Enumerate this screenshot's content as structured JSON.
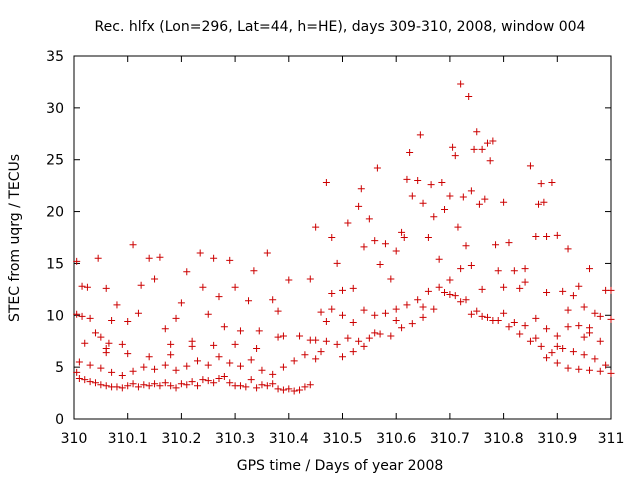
{
  "chart_data": {
    "type": "scatter",
    "title": "Rec. hlfx (Lon=296, Lat=44, h=HE), days 309-310, 2008, window 004",
    "xlabel": "GPS time / Days of year 2008",
    "ylabel": "STEC from uqrg / TECUs",
    "xlim": [
      310,
      311
    ],
    "ylim": [
      0,
      35
    ],
    "xticks": [
      310,
      310.1,
      310.2,
      310.3,
      310.4,
      310.5,
      310.6,
      310.7,
      310.8,
      310.9,
      311
    ],
    "xtick_labels": [
      "310",
      "310.1",
      "310.2",
      "310.3",
      "310.4",
      "310.5",
      "310.6",
      "310.7",
      "310.8",
      "310.9",
      "311"
    ],
    "yticks": [
      0,
      5,
      10,
      15,
      20,
      25,
      30,
      35
    ],
    "ytick_labels": [
      "0",
      "5",
      "10",
      "15",
      "20",
      "25",
      "30",
      "35"
    ],
    "grid": false,
    "marker": "plus",
    "color": "#cc0000",
    "series": [
      {
        "points": [
          [
            310.005,
            15.2
          ],
          [
            310.015,
            12.8
          ],
          [
            310.025,
            12.7
          ],
          [
            310.045,
            15.5
          ],
          [
            310.06,
            12.6
          ],
          [
            310.005,
            10.1
          ],
          [
            310.015,
            9.9
          ],
          [
            310.03,
            9.7
          ],
          [
            310.04,
            8.3
          ],
          [
            310.05,
            7.9
          ],
          [
            310.06,
            6.8
          ],
          [
            310.065,
            7.3
          ],
          [
            310.07,
            9.5
          ],
          [
            310.08,
            11.0
          ],
          [
            310.09,
            7.2
          ],
          [
            310.1,
            9.4
          ],
          [
            310.11,
            16.8
          ],
          [
            310.12,
            10.2
          ],
          [
            310.125,
            12.9
          ],
          [
            310.14,
            15.5
          ],
          [
            310.15,
            13.5
          ],
          [
            310.16,
            15.6
          ],
          [
            310.17,
            8.7
          ],
          [
            310.18,
            7.2
          ],
          [
            310.19,
            9.7
          ],
          [
            310.2,
            11.2
          ],
          [
            310.21,
            14.2
          ],
          [
            310.22,
            7.5
          ],
          [
            310.235,
            16.0
          ],
          [
            310.24,
            12.7
          ],
          [
            310.25,
            10.1
          ],
          [
            310.26,
            15.5
          ],
          [
            310.27,
            11.8
          ],
          [
            310.28,
            8.9
          ],
          [
            310.29,
            15.3
          ],
          [
            310.3,
            12.7
          ],
          [
            310.31,
            8.5
          ],
          [
            310.325,
            11.4
          ],
          [
            310.335,
            14.3
          ],
          [
            310.345,
            8.5
          ],
          [
            310.36,
            16.0
          ],
          [
            310.37,
            11.5
          ],
          [
            310.38,
            10.4
          ],
          [
            310.39,
            8.0
          ],
          [
            310.4,
            13.4
          ],
          [
            310.005,
            4.5
          ],
          [
            310.01,
            3.9
          ],
          [
            310.02,
            3.8
          ],
          [
            310.03,
            3.6
          ],
          [
            310.04,
            3.5
          ],
          [
            310.05,
            3.3
          ],
          [
            310.06,
            3.2
          ],
          [
            310.07,
            3.1
          ],
          [
            310.08,
            3.1
          ],
          [
            310.09,
            3.0
          ],
          [
            310.1,
            3.2
          ],
          [
            310.11,
            3.4
          ],
          [
            310.12,
            3.1
          ],
          [
            310.13,
            3.3
          ],
          [
            310.14,
            3.2
          ],
          [
            310.15,
            3.4
          ],
          [
            310.16,
            3.2
          ],
          [
            310.17,
            3.5
          ],
          [
            310.18,
            3.2
          ],
          [
            310.19,
            3.0
          ],
          [
            310.2,
            3.4
          ],
          [
            310.21,
            3.3
          ],
          [
            310.22,
            3.6
          ],
          [
            310.23,
            3.2
          ],
          [
            310.24,
            3.8
          ],
          [
            310.25,
            3.7
          ],
          [
            310.26,
            3.5
          ],
          [
            310.27,
            3.9
          ],
          [
            310.28,
            4.1
          ],
          [
            310.29,
            3.5
          ],
          [
            310.3,
            3.2
          ],
          [
            310.31,
            3.2
          ],
          [
            310.32,
            3.1
          ],
          [
            310.33,
            3.8
          ],
          [
            310.34,
            3.0
          ],
          [
            310.35,
            3.3
          ],
          [
            310.36,
            3.2
          ],
          [
            310.37,
            3.4
          ],
          [
            310.38,
            2.9
          ],
          [
            310.39,
            2.8
          ],
          [
            310.4,
            2.9
          ],
          [
            310.41,
            2.7
          ],
          [
            310.42,
            2.8
          ],
          [
            310.43,
            3.1
          ],
          [
            310.44,
            3.3
          ],
          [
            310.01,
            5.5
          ],
          [
            310.03,
            5.2
          ],
          [
            310.05,
            4.9
          ],
          [
            310.07,
            4.5
          ],
          [
            310.09,
            4.2
          ],
          [
            310.11,
            4.6
          ],
          [
            310.13,
            5.0
          ],
          [
            310.15,
            4.8
          ],
          [
            310.17,
            5.2
          ],
          [
            310.19,
            4.7
          ],
          [
            310.21,
            5.1
          ],
          [
            310.23,
            5.6
          ],
          [
            310.25,
            5.2
          ],
          [
            310.27,
            6.0
          ],
          [
            310.29,
            5.4
          ],
          [
            310.31,
            5.1
          ],
          [
            310.33,
            5.7
          ],
          [
            310.35,
            4.7
          ],
          [
            310.37,
            4.3
          ],
          [
            310.39,
            5.0
          ],
          [
            310.41,
            5.6
          ],
          [
            310.43,
            6.2
          ],
          [
            310.45,
            5.8
          ],
          [
            310.02,
            7.3
          ],
          [
            310.06,
            6.4
          ],
          [
            310.1,
            6.3
          ],
          [
            310.14,
            6.0
          ],
          [
            310.18,
            6.2
          ],
          [
            310.22,
            7.0
          ],
          [
            310.26,
            7.1
          ],
          [
            310.3,
            7.2
          ],
          [
            310.34,
            6.8
          ],
          [
            310.38,
            7.9
          ],
          [
            310.42,
            8.0
          ],
          [
            310.44,
            7.6
          ],
          [
            310.46,
            6.5
          ],
          [
            310.47,
            9.4
          ],
          [
            310.48,
            12.1
          ],
          [
            310.44,
            13.5
          ],
          [
            310.45,
            18.5
          ],
          [
            310.47,
            22.8
          ],
          [
            310.48,
            17.5
          ],
          [
            310.49,
            15.0
          ],
          [
            310.5,
            12.4
          ],
          [
            310.51,
            18.9
          ],
          [
            310.52,
            12.6
          ],
          [
            310.53,
            20.5
          ],
          [
            310.535,
            22.2
          ],
          [
            310.54,
            16.6
          ],
          [
            310.55,
            19.3
          ],
          [
            310.56,
            17.2
          ],
          [
            310.565,
            24.2
          ],
          [
            310.57,
            14.9
          ],
          [
            310.58,
            16.9
          ],
          [
            310.59,
            13.5
          ],
          [
            310.6,
            16.2
          ],
          [
            310.61,
            18.0
          ],
          [
            310.615,
            17.5
          ],
          [
            310.62,
            23.1
          ],
          [
            310.625,
            25.7
          ],
          [
            310.63,
            21.5
          ],
          [
            310.64,
            23.0
          ],
          [
            310.645,
            27.4
          ],
          [
            310.65,
            20.8
          ],
          [
            310.66,
            17.5
          ],
          [
            310.665,
            22.6
          ],
          [
            310.67,
            19.5
          ],
          [
            310.68,
            15.4
          ],
          [
            310.685,
            22.8
          ],
          [
            310.69,
            20.2
          ],
          [
            310.7,
            21.5
          ],
          [
            310.705,
            26.2
          ],
          [
            310.71,
            25.4
          ],
          [
            310.715,
            18.5
          ],
          [
            310.72,
            32.3
          ],
          [
            310.725,
            21.4
          ],
          [
            310.73,
            16.7
          ],
          [
            310.735,
            31.1
          ],
          [
            310.74,
            22.0
          ],
          [
            310.745,
            26.0
          ],
          [
            310.75,
            27.7
          ],
          [
            310.755,
            20.7
          ],
          [
            310.76,
            26.0
          ],
          [
            310.765,
            21.2
          ],
          [
            310.77,
            26.6
          ],
          [
            310.775,
            24.9
          ],
          [
            310.78,
            26.8
          ],
          [
            310.785,
            16.8
          ],
          [
            310.79,
            14.3
          ],
          [
            310.8,
            20.9
          ],
          [
            310.81,
            17.0
          ],
          [
            310.82,
            14.3
          ],
          [
            310.83,
            12.6
          ],
          [
            310.84,
            14.5
          ],
          [
            310.85,
            24.4
          ],
          [
            310.86,
            17.6
          ],
          [
            310.865,
            20.7
          ],
          [
            310.87,
            22.7
          ],
          [
            310.875,
            20.9
          ],
          [
            310.88,
            17.6
          ],
          [
            310.89,
            22.8
          ],
          [
            310.9,
            17.7
          ],
          [
            310.91,
            12.3
          ],
          [
            310.92,
            16.4
          ],
          [
            310.93,
            11.9
          ],
          [
            310.94,
            12.8
          ],
          [
            310.95,
            10.8
          ],
          [
            310.96,
            14.5
          ],
          [
            310.97,
            10.2
          ],
          [
            310.98,
            9.9
          ],
          [
            310.99,
            12.4
          ],
          [
            311.0,
            12.4
          ],
          [
            310.46,
            10.3
          ],
          [
            310.48,
            10.6
          ],
          [
            310.5,
            10.0
          ],
          [
            310.52,
            9.3
          ],
          [
            310.54,
            10.5
          ],
          [
            310.56,
            10.0
          ],
          [
            310.58,
            10.2
          ],
          [
            310.6,
            10.6
          ],
          [
            310.62,
            11.0
          ],
          [
            310.64,
            11.5
          ],
          [
            310.66,
            12.3
          ],
          [
            310.68,
            12.7
          ],
          [
            310.7,
            12.0
          ],
          [
            310.72,
            11.3
          ],
          [
            310.74,
            10.1
          ],
          [
            310.76,
            9.9
          ],
          [
            310.78,
            9.5
          ],
          [
            310.8,
            10.2
          ],
          [
            310.82,
            9.3
          ],
          [
            310.84,
            9.0
          ],
          [
            310.86,
            9.7
          ],
          [
            310.88,
            8.7
          ],
          [
            310.9,
            8.0
          ],
          [
            310.92,
            8.9
          ],
          [
            310.94,
            9.0
          ],
          [
            310.96,
            8.8
          ],
          [
            310.98,
            7.5
          ],
          [
            311.0,
            9.6
          ],
          [
            310.45,
            7.6
          ],
          [
            310.47,
            7.5
          ],
          [
            310.49,
            7.2
          ],
          [
            310.51,
            7.8
          ],
          [
            310.53,
            7.5
          ],
          [
            310.55,
            7.8
          ],
          [
            310.57,
            8.2
          ],
          [
            310.59,
            8.0
          ],
          [
            310.61,
            8.8
          ],
          [
            310.63,
            9.2
          ],
          [
            310.65,
            9.8
          ],
          [
            310.67,
            10.6
          ],
          [
            310.69,
            12.2
          ],
          [
            310.71,
            11.9
          ],
          [
            310.73,
            11.5
          ],
          [
            310.75,
            10.4
          ],
          [
            310.77,
            9.8
          ],
          [
            310.79,
            9.5
          ],
          [
            310.81,
            8.9
          ],
          [
            310.83,
            8.2
          ],
          [
            310.85,
            7.5
          ],
          [
            310.87,
            7.0
          ],
          [
            310.89,
            6.4
          ],
          [
            310.91,
            6.8
          ],
          [
            310.93,
            6.5
          ],
          [
            310.95,
            6.2
          ],
          [
            310.97,
            5.8
          ],
          [
            310.99,
            5.2
          ],
          [
            310.88,
            5.9
          ],
          [
            310.9,
            5.4
          ],
          [
            310.92,
            4.9
          ],
          [
            310.94,
            4.8
          ],
          [
            310.96,
            4.7
          ],
          [
            310.98,
            4.6
          ],
          [
            311.0,
            4.4
          ],
          [
            310.86,
            7.8
          ],
          [
            310.9,
            7.0
          ],
          [
            310.95,
            7.9
          ],
          [
            310.5,
            6.0
          ],
          [
            310.52,
            6.5
          ],
          [
            310.54,
            7.0
          ],
          [
            310.56,
            8.3
          ],
          [
            310.6,
            9.5
          ],
          [
            310.65,
            10.8
          ],
          [
            310.7,
            13.4
          ],
          [
            310.72,
            14.5
          ],
          [
            310.74,
            14.8
          ],
          [
            310.76,
            12.5
          ],
          [
            310.8,
            12.7
          ],
          [
            310.84,
            13.2
          ],
          [
            310.88,
            12.2
          ],
          [
            310.92,
            10.5
          ],
          [
            310.96,
            8.3
          ]
        ]
      }
    ]
  }
}
